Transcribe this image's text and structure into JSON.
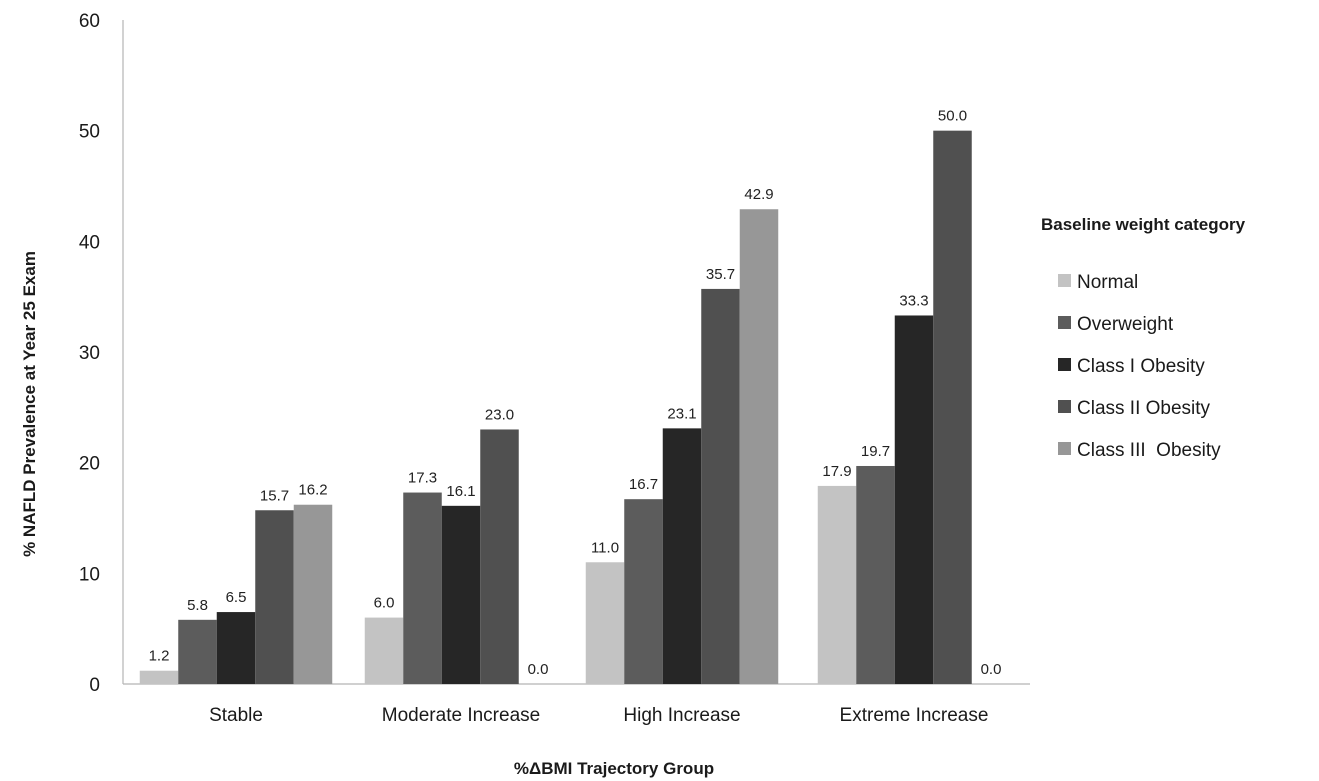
{
  "chart_data": {
    "type": "bar",
    "categories": [
      "Stable",
      "Moderate Increase",
      "High Increase",
      "Extreme Increase"
    ],
    "series": [
      {
        "name": "Normal",
        "color": "#c3c3c3",
        "values": [
          1.2,
          6.0,
          11.0,
          17.9
        ]
      },
      {
        "name": "Overweight",
        "color": "#5c5c5c",
        "values": [
          5.8,
          17.3,
          16.7,
          19.7
        ]
      },
      {
        "name": "Class I Obesity",
        "color": "#262626",
        "values": [
          6.5,
          16.1,
          23.1,
          33.3
        ]
      },
      {
        "name": "Class II Obesity",
        "color": "#505050",
        "values": [
          15.7,
          23.0,
          35.7,
          50.0
        ]
      },
      {
        "name": "Class III  Obesity",
        "color": "#979797",
        "values": [
          16.2,
          0.0,
          42.9,
          0.0
        ]
      }
    ],
    "data_labels": [
      [
        "1.2",
        "6.0",
        "11.0",
        "17.9"
      ],
      [
        "5.8",
        "17.3",
        "16.7",
        "19.7"
      ],
      [
        "6.5",
        "16.1",
        "23.1",
        "33.3"
      ],
      [
        "15.7",
        "23.0",
        "35.7",
        "50.0"
      ],
      [
        "16.2",
        "0.0",
        "42.9",
        "0.0"
      ]
    ],
    "title": "",
    "xlabel": "%ΔBMI Trajectory Group",
    "ylabel": "% NAFLD Prevalence at Year 25 Exam",
    "ylim": [
      0,
      60
    ],
    "yticks": [
      0,
      10,
      20,
      30,
      40,
      50,
      60
    ],
    "ytick_labels": [
      "0",
      "10",
      "20",
      "30",
      "40",
      "50",
      "60"
    ],
    "grid": false,
    "legend": {
      "title": "Baseline weight category",
      "placement": "right"
    }
  }
}
